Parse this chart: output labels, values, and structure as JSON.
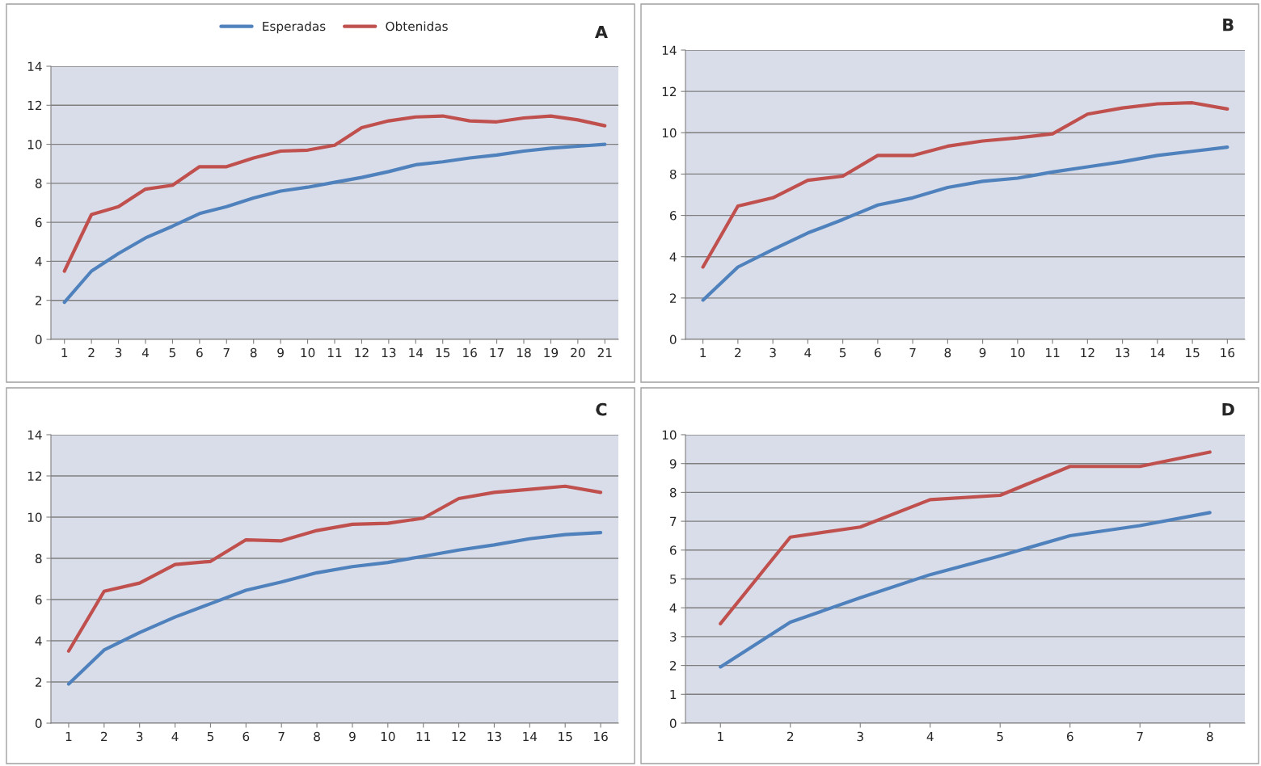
{
  "chart_data": [
    {
      "type": "line",
      "annotations": [
        "A"
      ],
      "categories": [
        "1",
        "2",
        "3",
        "4",
        "5",
        "6",
        "7",
        "8",
        "9",
        "10",
        "11",
        "12",
        "13",
        "14",
        "15",
        "16",
        "17",
        "18",
        "19",
        "20",
        "21"
      ],
      "ylim": [
        0,
        14
      ],
      "yticks": [
        0,
        2,
        4,
        6,
        8,
        10,
        12,
        14
      ],
      "grid": "y",
      "legend": "top",
      "series": [
        {
          "name": "Esperadas",
          "color": "#4f81bd",
          "values": [
            1.9,
            3.5,
            4.4,
            5.2,
            5.8,
            6.45,
            6.8,
            7.25,
            7.6,
            7.8,
            8.05,
            8.3,
            8.6,
            8.95,
            9.1,
            9.3,
            9.45,
            9.65,
            9.8,
            9.9,
            10.0
          ]
        },
        {
          "name": "Obtenidas",
          "color": "#c0504d",
          "values": [
            3.5,
            6.4,
            6.8,
            7.7,
            7.9,
            8.85,
            8.85,
            9.3,
            9.65,
            9.7,
            9.95,
            10.85,
            11.2,
            11.4,
            11.45,
            11.2,
            11.15,
            11.35,
            11.45,
            11.25,
            10.95
          ]
        }
      ]
    },
    {
      "type": "line",
      "annotations": [
        "B"
      ],
      "categories": [
        "1",
        "2",
        "3",
        "4",
        "5",
        "6",
        "7",
        "8",
        "9",
        "10",
        "11",
        "12",
        "13",
        "14",
        "15",
        "16"
      ],
      "ylim": [
        0,
        14
      ],
      "yticks": [
        0,
        2,
        4,
        6,
        8,
        10,
        12,
        14
      ],
      "grid": "y",
      "series": [
        {
          "color": "#4f81bd",
          "values": [
            1.9,
            3.5,
            4.35,
            5.15,
            5.8,
            6.5,
            6.85,
            7.35,
            7.65,
            7.8,
            8.1,
            8.35,
            8.6,
            8.9,
            9.1,
            9.3
          ]
        },
        {
          "color": "#c0504d",
          "values": [
            3.5,
            6.45,
            6.85,
            7.7,
            7.9,
            8.9,
            8.9,
            9.35,
            9.6,
            9.75,
            9.95,
            10.9,
            11.2,
            11.4,
            11.45,
            11.15
          ]
        }
      ]
    },
    {
      "type": "line",
      "annotations": [
        "C"
      ],
      "categories": [
        "1",
        "2",
        "3",
        "4",
        "5",
        "6",
        "7",
        "8",
        "9",
        "10",
        "11",
        "12",
        "13",
        "14",
        "15",
        "16"
      ],
      "ylim": [
        0,
        14
      ],
      "yticks": [
        0,
        2,
        4,
        6,
        8,
        10,
        12,
        14
      ],
      "grid": "y",
      "series": [
        {
          "color": "#4f81bd",
          "values": [
            1.9,
            3.55,
            4.4,
            5.15,
            5.8,
            6.45,
            6.85,
            7.3,
            7.6,
            7.8,
            8.1,
            8.4,
            8.65,
            8.95,
            9.15,
            9.25
          ]
        },
        {
          "color": "#c0504d",
          "values": [
            3.5,
            6.4,
            6.8,
            7.7,
            7.85,
            8.9,
            8.85,
            9.35,
            9.65,
            9.7,
            9.95,
            10.9,
            11.2,
            11.35,
            11.5,
            11.2
          ]
        }
      ]
    },
    {
      "type": "line",
      "annotations": [
        "D"
      ],
      "categories": [
        "1",
        "2",
        "3",
        "4",
        "5",
        "6",
        "7",
        "8"
      ],
      "ylim": [
        0,
        10
      ],
      "yticks": [
        0,
        1,
        2,
        3,
        4,
        5,
        6,
        7,
        8,
        9,
        10
      ],
      "grid": "y",
      "series": [
        {
          "color": "#4f81bd",
          "values": [
            1.95,
            3.5,
            4.35,
            5.15,
            5.8,
            6.5,
            6.85,
            7.3
          ]
        },
        {
          "color": "#c0504d",
          "values": [
            3.45,
            6.45,
            6.8,
            7.75,
            7.9,
            8.9,
            8.9,
            9.4
          ]
        }
      ]
    }
  ]
}
